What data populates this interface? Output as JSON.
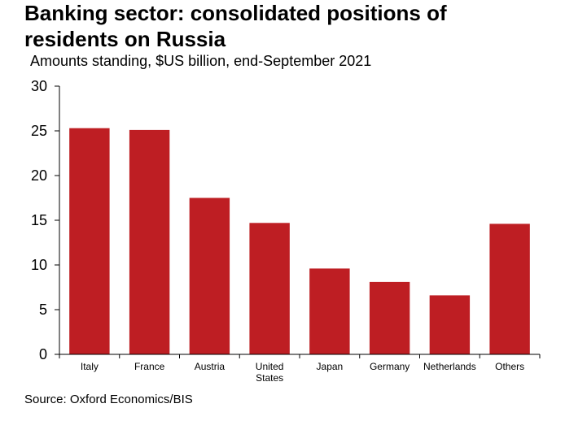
{
  "header": {
    "title_line1": "Banking sector: consolidated positions of",
    "title_line2": "residents on Russia",
    "subtitle": "Amounts standing, $US billion, end-September 2021"
  },
  "footer": {
    "source": "Source: Oxford Economics/BIS"
  },
  "colors": {
    "bar": "#BE1E23",
    "axis": "#000000"
  },
  "chart_data": {
    "type": "bar",
    "title": "Banking sector: consolidated positions of residents on Russia",
    "subtitle": "Amounts standing, $US billion, end-September 2021",
    "xlabel": "",
    "ylabel": "",
    "categories": [
      "Italy",
      "France",
      "Austria",
      "United States",
      "Japan",
      "Germany",
      "Netherlands",
      "Others"
    ],
    "category_label_lines": [
      [
        "Italy"
      ],
      [
        "France"
      ],
      [
        "Austria"
      ],
      [
        "United",
        "States"
      ],
      [
        "Japan"
      ],
      [
        "Germany"
      ],
      [
        "Netherlands"
      ],
      [
        "Others"
      ]
    ],
    "values": [
      25.3,
      25.1,
      17.5,
      14.7,
      9.6,
      8.1,
      6.6,
      14.6
    ],
    "ylim": [
      0,
      30
    ],
    "yticks": [
      0,
      5,
      10,
      15,
      20,
      25,
      30
    ],
    "grid": false,
    "legend": "none",
    "source": "Source: Oxford Economics/BIS"
  }
}
